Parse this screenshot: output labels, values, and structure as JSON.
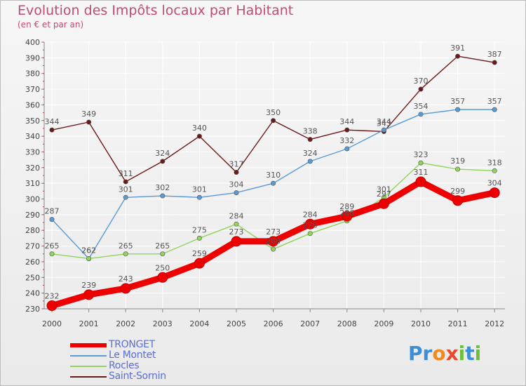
{
  "title": "Evolution des Impôts locaux par Habitant",
  "subtitle": "(en € et par an)",
  "logo": {
    "text": "Proxiti",
    "letters": [
      "P",
      "r",
      "o",
      "x",
      "i",
      "t",
      "i"
    ],
    "letter_colors": [
      "#3b8fd6",
      "#3b8fd6",
      "#f08a1c",
      "#e8492c",
      "#6cbf3b",
      "#3b8fd6",
      "#6cbf3b"
    ]
  },
  "chart_data": {
    "type": "line",
    "title": "Evolution des Impôts locaux par Habitant",
    "subtitle": "(en € et par an)",
    "xlabel": "",
    "ylabel": "",
    "categories": [
      "2000",
      "2001",
      "2002",
      "2003",
      "2004",
      "2005",
      "2006",
      "2007",
      "2008",
      "2009",
      "2010",
      "2011",
      "2012"
    ],
    "ylim": [
      230,
      400
    ],
    "yticks": [
      230,
      240,
      250,
      260,
      270,
      280,
      290,
      300,
      310,
      320,
      330,
      340,
      350,
      360,
      370,
      380,
      390,
      400
    ],
    "grid": true,
    "legend_position": "bottom-left",
    "series": [
      {
        "name": "TRONGET",
        "color": "#ee0000",
        "values": [
          232,
          239,
          243,
          250,
          259,
          273,
          273,
          284,
          289,
          297,
          311,
          299,
          304
        ]
      },
      {
        "name": "Le Montet",
        "color": "#5a9bd5",
        "values": [
          287,
          262,
          301,
          302,
          301,
          304,
          310,
          324,
          332,
          344,
          354,
          357,
          357
        ]
      },
      {
        "name": "Rocles",
        "color": "#90d45a",
        "values": [
          265,
          262,
          265,
          265,
          275,
          284,
          268,
          278,
          286,
          301,
          323,
          319,
          318
        ]
      },
      {
        "name": "Saint-Sornin",
        "color": "#6b1a1a",
        "values": [
          344,
          349,
          311,
          324,
          340,
          317,
          350,
          338,
          344,
          343,
          370,
          391,
          387
        ]
      }
    ]
  }
}
